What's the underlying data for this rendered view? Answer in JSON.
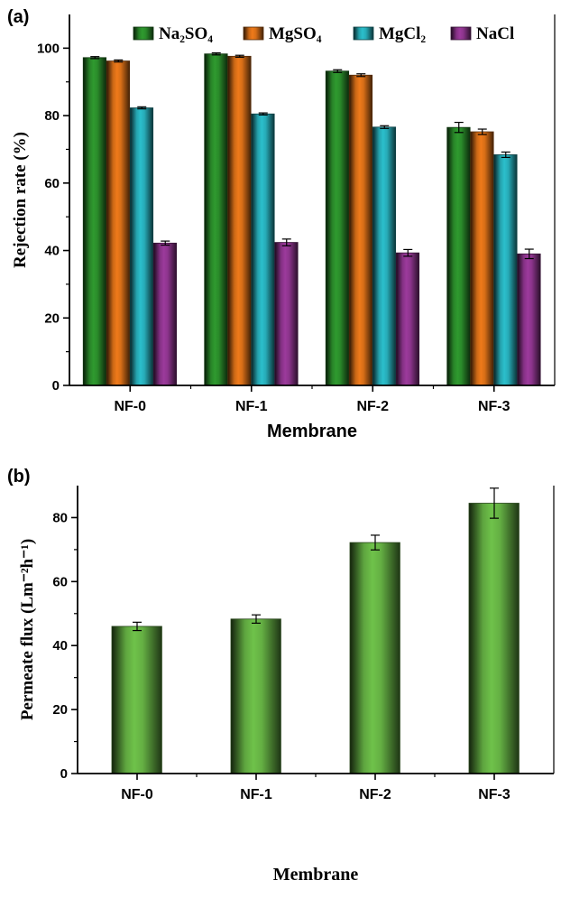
{
  "chart_data": [
    {
      "panel_label": "(a)",
      "type": "bar",
      "xlabel": "Membrane",
      "ylabel": "Rejection rate (%)",
      "categories": [
        "NF-0",
        "NF-1",
        "NF-2",
        "NF-3"
      ],
      "ylim": [
        0,
        110
      ],
      "yticks": [
        0,
        20,
        40,
        60,
        80,
        100
      ],
      "legend_position": "top",
      "series": [
        {
          "name": "Na₂SO₄",
          "color": "#2f9a2f",
          "values": [
            97.2,
            98.3,
            93.2,
            76.5
          ],
          "errors": [
            0.3,
            0.3,
            0.4,
            1.5
          ]
        },
        {
          "name": "MgSO₄",
          "color": "#ef7a1a",
          "values": [
            96.2,
            97.6,
            92.0,
            75.2
          ],
          "errors": [
            0.3,
            0.3,
            0.4,
            0.8
          ]
        },
        {
          "name": "MgCl₂",
          "color": "#2bbfcc",
          "values": [
            82.3,
            80.5,
            76.6,
            68.4
          ],
          "errors": [
            0.3,
            0.3,
            0.4,
            0.8
          ]
        },
        {
          "name": "NaCl",
          "color": "#9c3a9c",
          "values": [
            42.2,
            42.4,
            39.3,
            39.0
          ],
          "errors": [
            0.6,
            1.0,
            1.0,
            1.4
          ]
        }
      ]
    },
    {
      "panel_label": "(b)",
      "type": "bar",
      "xlabel": "Membrane",
      "ylabel": "Permeate flux (Lm⁻²h⁻¹)",
      "categories": [
        "NF-0",
        "NF-1",
        "NF-2",
        "NF-3"
      ],
      "ylim": [
        0,
        90
      ],
      "yticks": [
        0,
        20,
        40,
        60,
        80
      ],
      "series": [
        {
          "name": "",
          "color": "#6fc24a",
          "values": [
            46.0,
            48.3,
            72.2,
            84.5
          ],
          "errors": [
            1.3,
            1.3,
            2.3,
            4.7
          ]
        }
      ]
    }
  ]
}
